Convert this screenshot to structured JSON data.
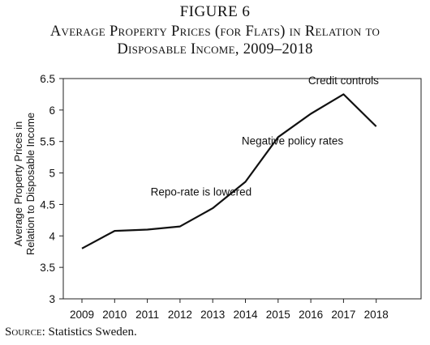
{
  "figure_label": "FIGURE 6",
  "figure_title_line1": "Average Property Prices (for Flats) in Relation to",
  "figure_title_line2": "Disposable Income, 2009–2018",
  "source_label": "Source:",
  "source_text": " Statistics Sweden.",
  "chart_data": {
    "type": "line",
    "x": [
      "2009",
      "2010",
      "2011",
      "2012",
      "2013",
      "2014",
      "2015",
      "2016",
      "2017",
      "2018"
    ],
    "series": [
      {
        "values": [
          3.8,
          4.08,
          4.1,
          4.15,
          4.44,
          4.86,
          5.57,
          5.94,
          6.25,
          5.74
        ]
      }
    ],
    "ylabel_line1": "Average Property Prices in",
    "ylabel_line2": "Relation to Disposable Income",
    "ylim": [
      3,
      6.5
    ],
    "yticks": [
      "3",
      "3.5",
      "4",
      "4.5",
      "5",
      "5.5",
      "6",
      "6.5"
    ],
    "annotations": [
      {
        "text": "Repo-rate is lowered",
        "x": "2012",
        "y": 4.64
      },
      {
        "text": "Negative policy rates",
        "x": "2014",
        "y": 5.45
      },
      {
        "text": "Credit controls",
        "x": "2017",
        "y": 6.41
      }
    ],
    "grid": false,
    "line_color": "#111111"
  }
}
